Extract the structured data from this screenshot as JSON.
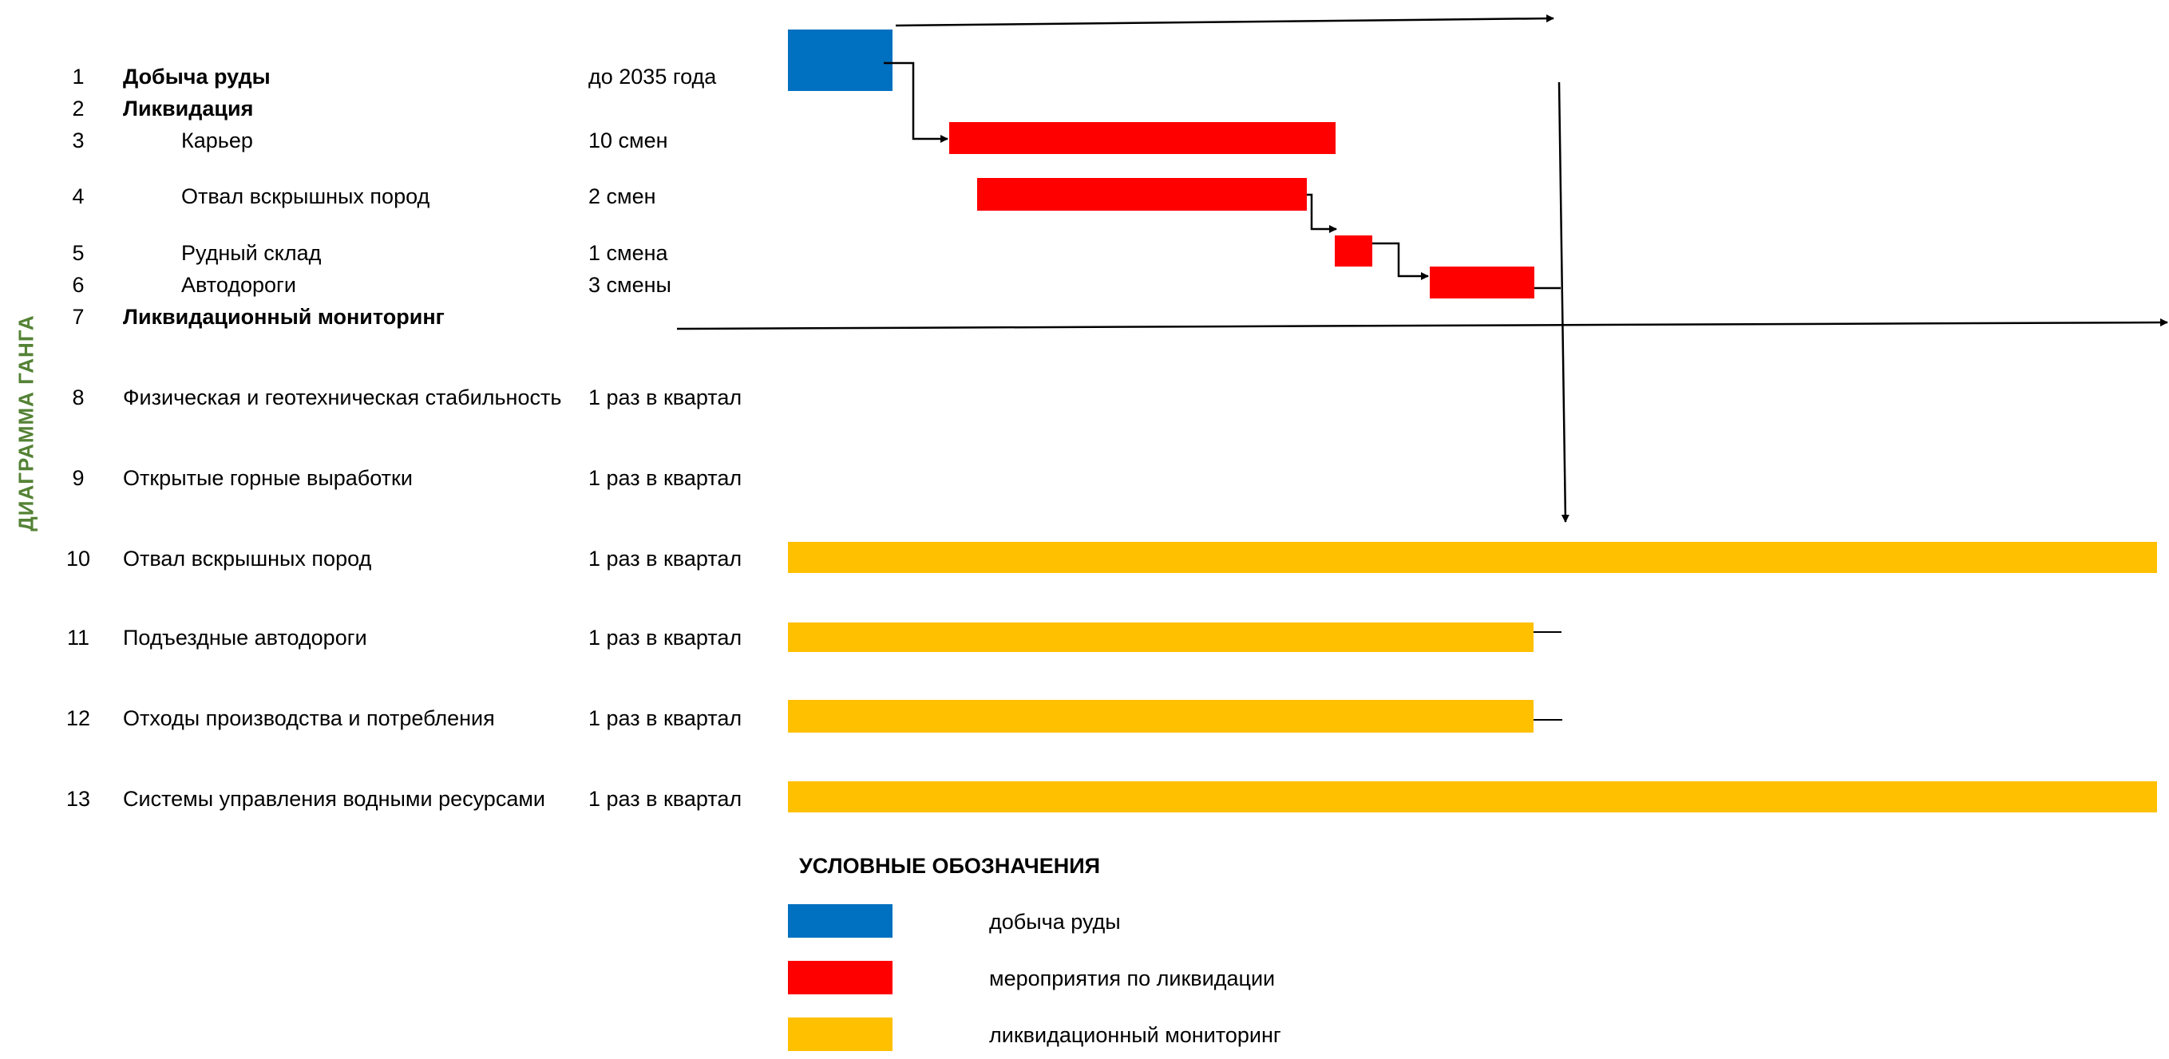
{
  "title": "ДИАГРАММА ГАНГА",
  "colors": {
    "mining": "#0070C0",
    "liquidation": "#FF0000",
    "monitoring": "#FFC000",
    "title_green": "#548235",
    "line": "#000000"
  },
  "tasks": [
    {
      "num": "1",
      "name": "Добыча руды",
      "duration": "до 2035 года",
      "bold": true,
      "type": "mining"
    },
    {
      "num": "2",
      "name": "Ликвидация",
      "duration": "",
      "bold": true,
      "type": "group"
    },
    {
      "num": "3",
      "name": "Карьер",
      "duration": "10 смен",
      "bold": false,
      "type": "liquidation"
    },
    {
      "num": "4",
      "name": "Отвал вскрышных пород",
      "duration": "2 смен",
      "bold": false,
      "type": "liquidation"
    },
    {
      "num": "5",
      "name": "Рудный склад",
      "duration": "1 смена",
      "bold": false,
      "type": "liquidation"
    },
    {
      "num": "6",
      "name": "Автодороги",
      "duration": "3 смены",
      "bold": false,
      "type": "liquidation"
    },
    {
      "num": "7",
      "name": "Ликвидационный мониторинг",
      "duration": "",
      "bold": true,
      "type": "group"
    },
    {
      "num": "8",
      "name": "Физическая и геотехническая стабильность",
      "duration": "1 раз в квартал",
      "bold": false,
      "type": "monitoring"
    },
    {
      "num": "9",
      "name": "Открытые горные выработки",
      "duration": "1 раз в квартал",
      "bold": false,
      "type": "monitoring"
    },
    {
      "num": "10",
      "name": "Отвал вскрышных пород",
      "duration": "1 раз в квартал",
      "bold": false,
      "type": "monitoring"
    },
    {
      "num": "11",
      "name": "Подъездные автодороги",
      "duration": "1 раз в квартал",
      "bold": false,
      "type": "monitoring"
    },
    {
      "num": "12",
      "name": "Отходы производства и потребления",
      "duration": "1 раз в квартал",
      "bold": false,
      "type": "monitoring"
    },
    {
      "num": "13",
      "name": "Системы управления водными ресурсами",
      "duration": "1 раз в квартал",
      "bold": false,
      "type": "monitoring"
    }
  ],
  "legend": {
    "title": "УСЛОВНЫЕ ОБОЗНАЧЕНИЯ",
    "items": [
      {
        "label": "добыча руды",
        "color": "#0070C0"
      },
      {
        "label": "мероприятия по ликвидации",
        "color": "#FF0000"
      },
      {
        "label": "ликвидационный мониторинг",
        "color": "#FFC000"
      }
    ]
  }
}
